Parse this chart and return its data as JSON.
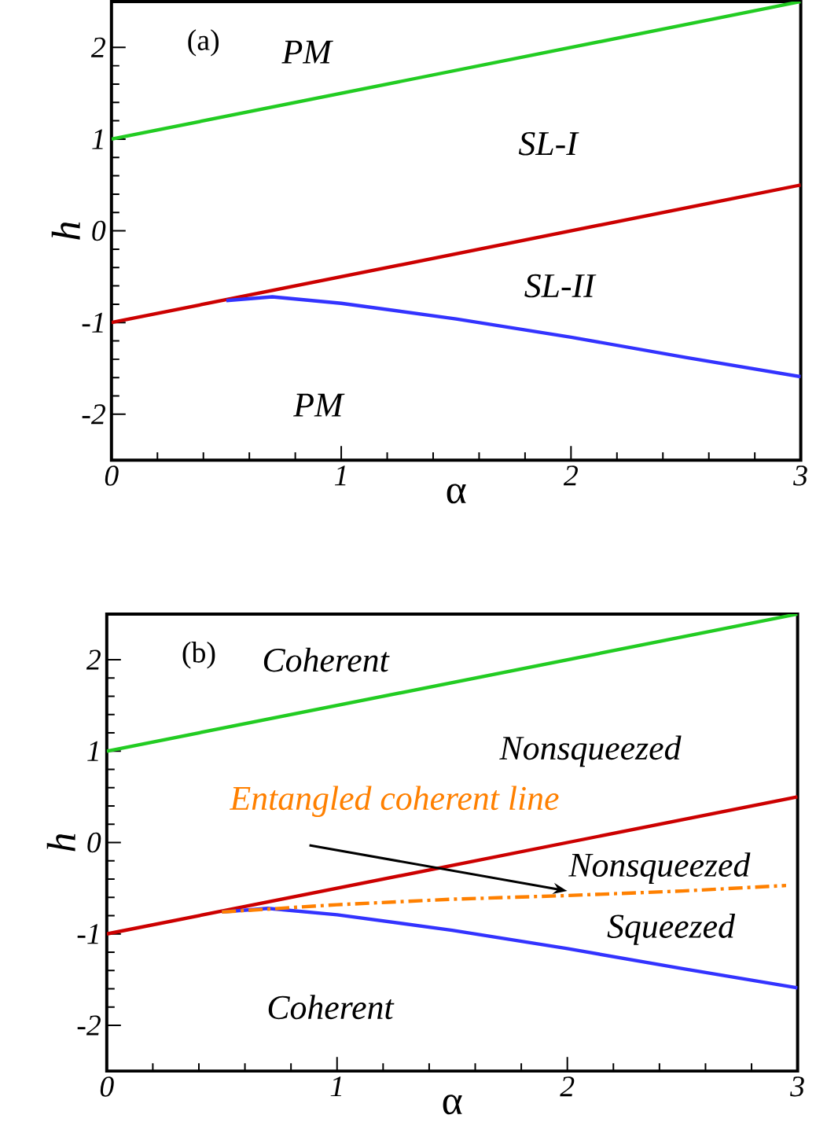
{
  "chart_data": [
    {
      "type": "line",
      "title": "(a)",
      "xlabel": "α",
      "ylabel": "h",
      "xlim": [
        0,
        3
      ],
      "ylim": [
        -2.5,
        2.5
      ],
      "xticks": [
        0,
        1,
        2,
        3
      ],
      "yticks": [
        -2,
        -1,
        0,
        1,
        2
      ],
      "grid": false,
      "line_style": "solid",
      "series": [
        {
          "color": "#22cc22",
          "x": [
            0,
            3
          ],
          "values": [
            1,
            2.5
          ]
        },
        {
          "color": "#cc0000",
          "x": [
            0,
            3
          ],
          "values": [
            -1,
            0.5
          ]
        },
        {
          "color": "#3333ff",
          "x": [
            0.5,
            0.7,
            1,
            1.5,
            2,
            2.5,
            3
          ],
          "values": [
            -0.76,
            -0.72,
            -0.79,
            -0.96,
            -1.16,
            -1.38,
            -1.59
          ]
        }
      ],
      "annotations": [
        "PM",
        "SL-I",
        "SL-II",
        "PM"
      ]
    },
    {
      "type": "line",
      "title": "(b)",
      "xlabel": "α",
      "ylabel": "h",
      "xlim": [
        0,
        3
      ],
      "ylim": [
        -2.5,
        2.5
      ],
      "xticks": [
        0,
        1,
        2,
        3
      ],
      "yticks": [
        -2,
        -1,
        0,
        1,
        2
      ],
      "grid": false,
      "line_style": "solid",
      "series": [
        {
          "color": "#22cc22",
          "x": [
            0,
            3
          ],
          "values": [
            1,
            2.5
          ]
        },
        {
          "color": "#cc0000",
          "x": [
            0,
            3
          ],
          "values": [
            -1,
            0.5
          ]
        },
        {
          "color": "#3333ff",
          "x": [
            0.5,
            0.7,
            1,
            1.5,
            2,
            2.5,
            3
          ],
          "values": [
            -0.76,
            -0.72,
            -0.79,
            -0.96,
            -1.16,
            -1.38,
            -1.59
          ]
        },
        {
          "name": "Entangled coherent line",
          "color": "#ff8000",
          "line_style": "dashdot",
          "x": [
            0.5,
            1,
            1.5,
            2,
            2.5,
            2.95
          ],
          "values": [
            -0.76,
            -0.68,
            -0.62,
            -0.58,
            -0.53,
            -0.47
          ]
        }
      ],
      "annotations": [
        "Coherent",
        "Nonsqueezed",
        "Nonsqueezed",
        "Squeezed",
        "Coherent"
      ]
    }
  ]
}
